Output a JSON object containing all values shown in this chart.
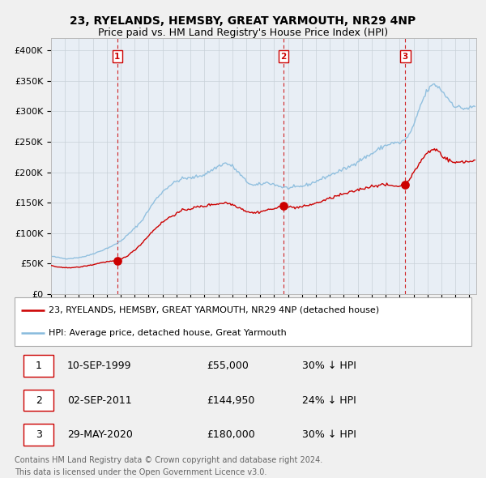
{
  "title": "23, RYELANDS, HEMSBY, GREAT YARMOUTH, NR29 4NP",
  "subtitle": "Price paid vs. HM Land Registry's House Price Index (HPI)",
  "ylabel_ticks": [
    "£0",
    "£50K",
    "£100K",
    "£150K",
    "£200K",
    "£250K",
    "£300K",
    "£350K",
    "£400K"
  ],
  "ytick_values": [
    0,
    50000,
    100000,
    150000,
    200000,
    250000,
    300000,
    350000,
    400000
  ],
  "ylim": [
    0,
    420000
  ],
  "xlim_start": 1995.0,
  "xlim_end": 2025.5,
  "sale_dates": [
    1999.75,
    2011.67,
    2020.41
  ],
  "sale_prices": [
    55000,
    144950,
    180000
  ],
  "sale_labels": [
    "1",
    "2",
    "3"
  ],
  "legend_entries": [
    "23, RYELANDS, HEMSBY, GREAT YARMOUTH, NR29 4NP (detached house)",
    "HPI: Average price, detached house, Great Yarmouth"
  ],
  "table_rows": [
    [
      "1",
      "10-SEP-1999",
      "£55,000",
      "30% ↓ HPI"
    ],
    [
      "2",
      "02-SEP-2011",
      "£144,950",
      "24% ↓ HPI"
    ],
    [
      "3",
      "29-MAY-2020",
      "£180,000",
      "30% ↓ HPI"
    ]
  ],
  "footnote1": "Contains HM Land Registry data © Crown copyright and database right 2024.",
  "footnote2": "This data is licensed under the Open Government Licence v3.0.",
  "line_color_sale": "#cc0000",
  "line_color_hpi": "#88bbdd",
  "vline_color": "#cc0000",
  "background_color": "#f0f0f0",
  "plot_bg_color": "#e8eef5"
}
